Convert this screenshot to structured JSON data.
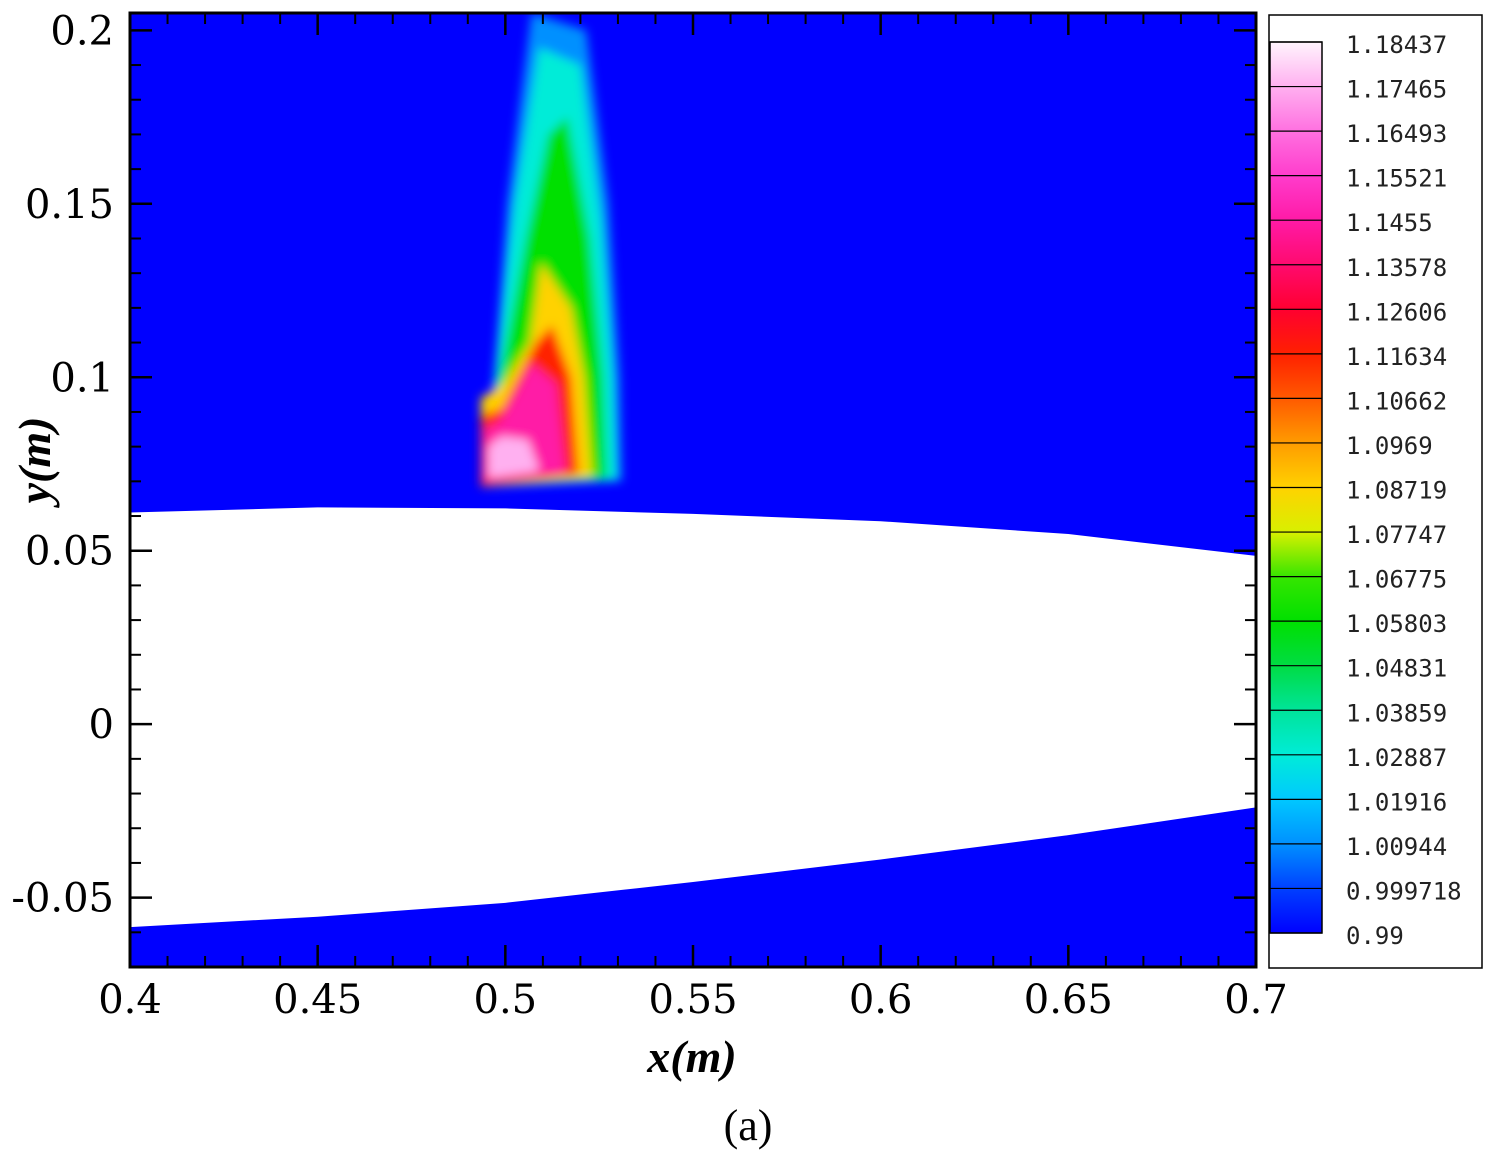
{
  "chart_data": {
    "type": "heatmap",
    "title": "",
    "xlabel": "x(m)",
    "ylabel": "y(m)",
    "caption": "(a)",
    "xlim": [
      0.4,
      0.7
    ],
    "ylim": [
      -0.07,
      0.205
    ],
    "x_ticks": [
      {
        "value": 0.4,
        "label": "0.4"
      },
      {
        "value": 0.45,
        "label": "0.45"
      },
      {
        "value": 0.5,
        "label": "0.5"
      },
      {
        "value": 0.55,
        "label": "0.55"
      },
      {
        "value": 0.6,
        "label": "0.6"
      },
      {
        "value": 0.65,
        "label": "0.65"
      },
      {
        "value": 0.7,
        "label": "0.7"
      }
    ],
    "y_ticks": [
      {
        "value": 0.2,
        "label": "0.2"
      },
      {
        "value": 0.15,
        "label": "0.15"
      },
      {
        "value": 0.1,
        "label": "0.1"
      },
      {
        "value": 0.05,
        "label": "0.05"
      },
      {
        "value": 0,
        "label": "0"
      },
      {
        "value": -0.05,
        "label": "-0.05"
      }
    ],
    "grid": false,
    "legend": {
      "placement": "right",
      "levels": [
        {
          "label": "1.18437",
          "color": "#fff4fd"
        },
        {
          "label": "1.17465",
          "color": "#ffb0f0"
        },
        {
          "label": "1.16493",
          "color": "#ff70e0"
        },
        {
          "label": "1.15521",
          "color": "#ff3ccc"
        },
        {
          "label": "1.1455",
          "color": "#ff1aa6"
        },
        {
          "label": "1.13578",
          "color": "#ff0a6e"
        },
        {
          "label": "1.12606",
          "color": "#ff0030"
        },
        {
          "label": "1.11634",
          "color": "#ff2000"
        },
        {
          "label": "1.10662",
          "color": "#ff5a00"
        },
        {
          "label": "1.0969",
          "color": "#ff9c00"
        },
        {
          "label": "1.08719",
          "color": "#ffd200"
        },
        {
          "label": "1.07747",
          "color": "#d8f000"
        },
        {
          "label": "1.06775",
          "color": "#36e600"
        },
        {
          "label": "1.05803",
          "color": "#00e000"
        },
        {
          "label": "1.04831",
          "color": "#00dc44"
        },
        {
          "label": "1.03859",
          "color": "#00e49a"
        },
        {
          "label": "1.02887",
          "color": "#00ecd8"
        },
        {
          "label": "1.01916",
          "color": "#00c8ff"
        },
        {
          "label": "1.00944",
          "color": "#0090ff"
        },
        {
          "label": "0.999718",
          "color": "#0040ff"
        },
        {
          "label": "0.99",
          "color": "#0000ff"
        }
      ]
    },
    "field_background_color": "#0000ff",
    "body_color": "#ffffff",
    "body_upper_surface": [
      [
        0.4,
        0.061
      ],
      [
        0.45,
        0.0625
      ],
      [
        0.5,
        0.0622
      ],
      [
        0.55,
        0.0606
      ],
      [
        0.6,
        0.0585
      ],
      [
        0.65,
        0.0548
      ],
      [
        0.7,
        0.0485
      ]
    ],
    "body_lower_surface": [
      [
        0.4,
        -0.0585
      ],
      [
        0.45,
        -0.0555
      ],
      [
        0.5,
        -0.0515
      ],
      [
        0.55,
        -0.0455
      ],
      [
        0.6,
        -0.039
      ],
      [
        0.65,
        -0.032
      ],
      [
        0.7,
        -0.024
      ]
    ],
    "plume_contours": [
      {
        "level": 1.00944,
        "points": [
          [
            0.4935,
            0.0685
          ],
          [
            0.531,
            0.07
          ],
          [
            0.5305,
            0.1
          ],
          [
            0.5275,
            0.15
          ],
          [
            0.5215,
            0.2
          ],
          [
            0.507,
            0.205
          ],
          [
            0.5005,
            0.15
          ],
          [
            0.497,
            0.1
          ]
        ]
      },
      {
        "level": 1.02887,
        "points": [
          [
            0.4935,
            0.0685
          ],
          [
            0.5295,
            0.0705
          ],
          [
            0.5285,
            0.1
          ],
          [
            0.5255,
            0.145
          ],
          [
            0.52,
            0.19
          ],
          [
            0.509,
            0.195
          ],
          [
            0.5025,
            0.15
          ],
          [
            0.4975,
            0.1
          ]
        ]
      },
      {
        "level": 1.05803,
        "points": [
          [
            0.4935,
            0.0685
          ],
          [
            0.527,
            0.071
          ],
          [
            0.526,
            0.1
          ],
          [
            0.5225,
            0.14
          ],
          [
            0.5165,
            0.175
          ],
          [
            0.5115,
            0.17
          ],
          [
            0.5055,
            0.14
          ],
          [
            0.4985,
            0.1
          ]
        ]
      },
      {
        "level": 1.08719,
        "points": [
          [
            0.4935,
            0.0685
          ],
          [
            0.523,
            0.0715
          ],
          [
            0.521,
            0.1
          ],
          [
            0.5175,
            0.12
          ],
          [
            0.5095,
            0.133
          ],
          [
            0.5065,
            0.11
          ],
          [
            0.4995,
            0.098
          ],
          [
            0.4935,
            0.094
          ]
        ]
      },
      {
        "level": 1.11634,
        "points": [
          [
            0.4935,
            0.0685
          ],
          [
            0.5195,
            0.072
          ],
          [
            0.5175,
            0.1
          ],
          [
            0.5125,
            0.115
          ],
          [
            0.508,
            0.11
          ],
          [
            0.499,
            0.091
          ],
          [
            0.4935,
            0.089
          ]
        ]
      },
      {
        "level": 1.1455,
        "points": [
          [
            0.4945,
            0.07
          ],
          [
            0.516,
            0.0725
          ],
          [
            0.5135,
            0.098
          ],
          [
            0.507,
            0.104
          ],
          [
            0.4985,
            0.087
          ],
          [
            0.4945,
            0.085
          ]
        ]
      },
      {
        "level": 1.17465,
        "points": [
          [
            0.4955,
            0.071
          ],
          [
            0.509,
            0.073
          ],
          [
            0.506,
            0.082
          ],
          [
            0.499,
            0.083
          ],
          [
            0.4955,
            0.08
          ]
        ]
      }
    ]
  }
}
